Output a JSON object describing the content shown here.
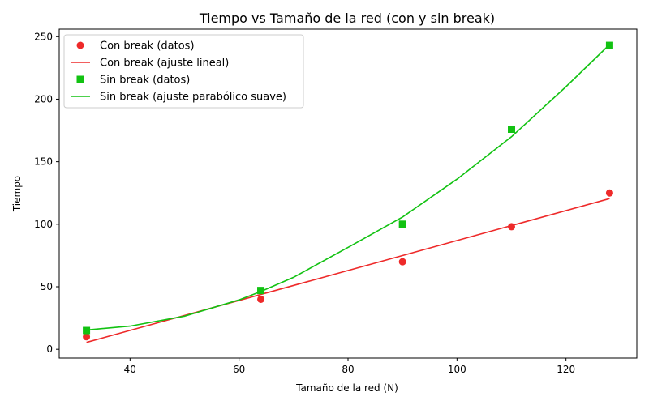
{
  "chart_data": {
    "type": "line",
    "title": "Tiempo vs Tamaño de la red (con y sin break)",
    "xlabel": "Tamaño de la red (N)",
    "ylabel": "Tiempo",
    "xlim": [
      27,
      133
    ],
    "ylim": [
      -7,
      256
    ],
    "xticks": [
      40,
      60,
      80,
      100,
      120
    ],
    "yticks": [
      0,
      50,
      100,
      150,
      200,
      250
    ],
    "grid": false,
    "legend_position": "top-left",
    "series": [
      {
        "name": "Con break (datos)",
        "kind": "scatter",
        "marker": "circle",
        "color": "#ee2a2a",
        "x": [
          32,
          64,
          90,
          110,
          128
        ],
        "y": [
          10,
          40,
          70,
          98,
          125
        ]
      },
      {
        "name": "Con break (ajuste lineal)",
        "kind": "line",
        "color": "#ee2a2a",
        "x": [
          32,
          128
        ],
        "y": [
          5.5,
          120.5
        ]
      },
      {
        "name": "Sin break (datos)",
        "kind": "scatter",
        "marker": "square",
        "color": "#12c212",
        "x": [
          32,
          64,
          90,
          110,
          128
        ],
        "y": [
          15,
          47,
          100,
          176,
          243
        ]
      },
      {
        "name": "Sin break (ajuste parabólico suave)",
        "kind": "curve",
        "color": "#12c212",
        "x": [
          32,
          40,
          50,
          60,
          64,
          70,
          80,
          90,
          100,
          110,
          120,
          128
        ],
        "y": [
          15.4,
          18.5,
          26.5,
          39.5,
          46.2,
          57.5,
          81.5,
          105.8,
          136,
          170,
          210,
          243.7
        ]
      }
    ]
  }
}
